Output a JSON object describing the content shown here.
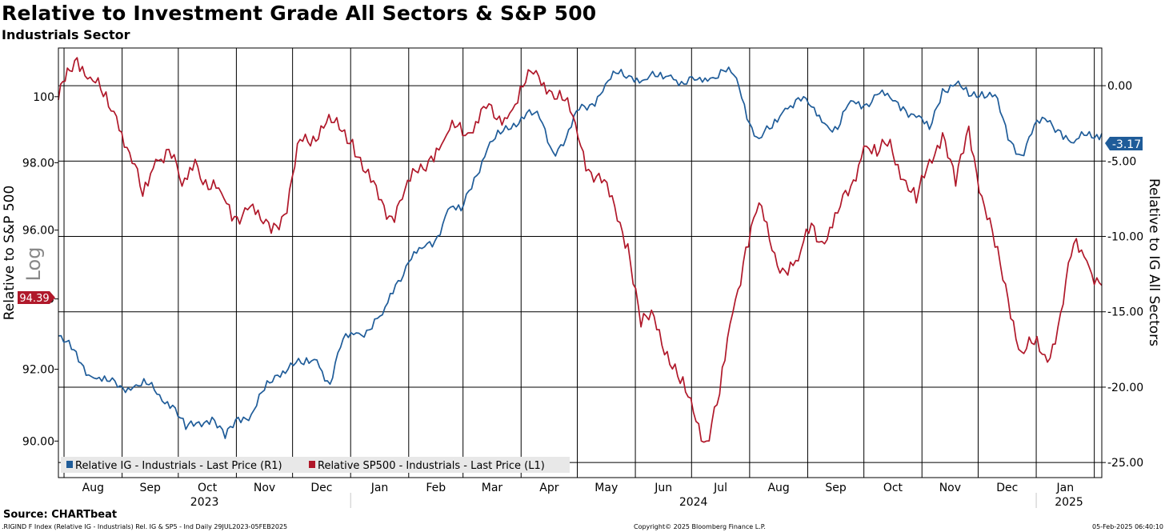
{
  "title": "Relative to Investment Grade All Sectors & S&P 500",
  "subtitle": "Industrials Sector",
  "source": "Source: CHARTbeat",
  "footer": {
    "left": ".RIGIND F Index (Relative IG - Industrials) Rel. IG & SP5 - Ind  Daily 29JUL2023-05FEB2025",
    "center": "Copyright© 2025 Bloomberg Finance L.P.",
    "right": "05-Feb-2025 06:40:10"
  },
  "chart_data": {
    "type": "line",
    "left_axis": {
      "label": "Relative to S&P 500",
      "scale_note": "Log",
      "ticks": [
        "90.00",
        "92.00",
        "94.00",
        "96.00",
        "98.00",
        "100"
      ],
      "range": [
        89.0,
        101.5
      ]
    },
    "right_axis": {
      "label": "Relative to IG All Sectors",
      "ticks": [
        "-25.00",
        "-20.00",
        "-15.00",
        "-10.00",
        "-5.00",
        "0.00"
      ],
      "range": [
        -26.0,
        2.5
      ]
    },
    "x_months": [
      "Aug",
      "Sep",
      "Oct",
      "Nov",
      "Dec",
      "Jan",
      "Feb",
      "Mar",
      "Apr",
      "May",
      "Jun",
      "Jul",
      "Aug",
      "Sep",
      "Oct",
      "Nov",
      "Dec",
      "Jan"
    ],
    "x_years": [
      "2023",
      "2024",
      "2025"
    ],
    "colors": {
      "ig": "#1f5c99",
      "sp500": "#b0182a"
    },
    "series": [
      {
        "name": "Relative IG - Industrials - Last Price (R1)",
        "axis": "right",
        "last_label": "-3.17",
        "points": [
          [
            "2023-07-29",
            -16.6
          ],
          [
            "2023-08-05",
            -17.5
          ],
          [
            "2023-08-10",
            -18.4
          ],
          [
            "2023-08-17",
            -19.4
          ],
          [
            "2023-08-24",
            -19.6
          ],
          [
            "2023-08-31",
            -19.9
          ],
          [
            "2023-09-07",
            -20.0
          ],
          [
            "2023-09-14",
            -19.8
          ],
          [
            "2023-09-21",
            -20.5
          ],
          [
            "2023-09-28",
            -21.2
          ],
          [
            "2023-10-05",
            -22.8
          ],
          [
            "2023-10-12",
            -22.3
          ],
          [
            "2023-10-19",
            -22.0
          ],
          [
            "2023-10-26",
            -23.4
          ],
          [
            "2023-11-02",
            -22.0
          ],
          [
            "2023-11-09",
            -21.8
          ],
          [
            "2023-11-16",
            -20.2
          ],
          [
            "2023-11-23",
            -19.2
          ],
          [
            "2023-11-30",
            -18.4
          ],
          [
            "2023-12-07",
            -18.5
          ],
          [
            "2023-12-14",
            -18.2
          ],
          [
            "2023-12-21",
            -19.8
          ],
          [
            "2023-12-28",
            -16.8
          ],
          [
            "2024-01-04",
            -16.4
          ],
          [
            "2024-01-11",
            -16.2
          ],
          [
            "2024-01-18",
            -15.2
          ],
          [
            "2024-01-25",
            -13.2
          ],
          [
            "2024-02-01",
            -11.7
          ],
          [
            "2024-02-08",
            -10.8
          ],
          [
            "2024-02-15",
            -10.3
          ],
          [
            "2024-02-22",
            -8.2
          ],
          [
            "2024-02-29",
            -8.3
          ],
          [
            "2024-03-07",
            -6.1
          ],
          [
            "2024-03-14",
            -4.2
          ],
          [
            "2024-03-21",
            -3.2
          ],
          [
            "2024-03-28",
            -2.5
          ],
          [
            "2024-04-04",
            -1.8
          ],
          [
            "2024-04-11",
            -2.2
          ],
          [
            "2024-04-18",
            -4.4
          ],
          [
            "2024-04-25",
            -3.5
          ],
          [
            "2024-05-02",
            -1.6
          ],
          [
            "2024-05-09",
            -1.2
          ],
          [
            "2024-05-16",
            0.1
          ],
          [
            "2024-05-23",
            0.8
          ],
          [
            "2024-05-30",
            0.6
          ],
          [
            "2024-06-06",
            0.4
          ],
          [
            "2024-06-13",
            0.6
          ],
          [
            "2024-06-20",
            0.7
          ],
          [
            "2024-06-27",
            0.1
          ],
          [
            "2024-07-04",
            0.4
          ],
          [
            "2024-07-11",
            0.5
          ],
          [
            "2024-07-18",
            1.0
          ],
          [
            "2024-07-25",
            0.5
          ],
          [
            "2024-08-01",
            -2.5
          ],
          [
            "2024-08-06",
            -3.5
          ],
          [
            "2024-08-13",
            -2.8
          ],
          [
            "2024-08-20",
            -1.5
          ],
          [
            "2024-08-27",
            -0.8
          ],
          [
            "2024-09-03",
            -1.4
          ],
          [
            "2024-09-10",
            -2.5
          ],
          [
            "2024-09-17",
            -2.9
          ],
          [
            "2024-09-24",
            -1.0
          ],
          [
            "2024-10-01",
            -1.3
          ],
          [
            "2024-10-08",
            -0.6
          ],
          [
            "2024-10-15",
            -0.8
          ],
          [
            "2024-10-22",
            -1.4
          ],
          [
            "2024-10-29",
            -2.1
          ],
          [
            "2024-11-05",
            -2.9
          ],
          [
            "2024-11-12",
            -0.2
          ],
          [
            "2024-11-19",
            0.1
          ],
          [
            "2024-11-26",
            -0.7
          ],
          [
            "2024-12-03",
            -0.4
          ],
          [
            "2024-12-10",
            -0.6
          ],
          [
            "2024-12-17",
            -3.6
          ],
          [
            "2024-12-24",
            -4.6
          ],
          [
            "2024-12-31",
            -2.6
          ],
          [
            "2025-01-07",
            -2.4
          ],
          [
            "2025-01-14",
            -3.0
          ],
          [
            "2025-01-21",
            -3.8
          ],
          [
            "2025-01-28",
            -3.3
          ],
          [
            "2025-02-05",
            -3.17
          ]
        ]
      },
      {
        "name": "Relative SP500 - Industrials - Last Price (L1)",
        "axis": "left",
        "last_label": "94.39",
        "points": [
          [
            "2023-07-29",
            99.9
          ],
          [
            "2023-08-04",
            100.8
          ],
          [
            "2023-08-08",
            101.2
          ],
          [
            "2023-08-15",
            100.6
          ],
          [
            "2023-08-22",
            100.0
          ],
          [
            "2023-08-29",
            99.4
          ],
          [
            "2023-09-05",
            98.3
          ],
          [
            "2023-09-12",
            97.0
          ],
          [
            "2023-09-19",
            98.1
          ],
          [
            "2023-09-26",
            98.4
          ],
          [
            "2023-10-03",
            97.3
          ],
          [
            "2023-10-10",
            98.1
          ],
          [
            "2023-10-17",
            97.2
          ],
          [
            "2023-10-24",
            97.1
          ],
          [
            "2023-10-31",
            96.4
          ],
          [
            "2023-11-07",
            96.6
          ],
          [
            "2023-11-14",
            96.3
          ],
          [
            "2023-11-21",
            96.2
          ],
          [
            "2023-11-28",
            96.5
          ],
          [
            "2023-12-05",
            98.7
          ],
          [
            "2023-12-12",
            98.8
          ],
          [
            "2023-12-19",
            99.2
          ],
          [
            "2023-12-26",
            99.0
          ],
          [
            "2024-01-02",
            98.7
          ],
          [
            "2024-01-09",
            97.7
          ],
          [
            "2024-01-16",
            96.9
          ],
          [
            "2024-01-23",
            96.4
          ],
          [
            "2024-01-30",
            97.2
          ],
          [
            "2024-02-06",
            97.7
          ],
          [
            "2024-02-13",
            98.2
          ],
          [
            "2024-02-20",
            98.7
          ],
          [
            "2024-02-27",
            99.1
          ],
          [
            "2024-03-05",
            98.9
          ],
          [
            "2024-03-12",
            99.7
          ],
          [
            "2024-03-19",
            99.3
          ],
          [
            "2024-03-26",
            99.5
          ],
          [
            "2024-04-02",
            100.3
          ],
          [
            "2024-04-09",
            100.8
          ],
          [
            "2024-04-16",
            100.2
          ],
          [
            "2024-04-23",
            99.9
          ],
          [
            "2024-04-30",
            99.2
          ],
          [
            "2024-05-07",
            97.8
          ],
          [
            "2024-05-14",
            97.4
          ],
          [
            "2024-05-21",
            96.7
          ],
          [
            "2024-05-28",
            95.6
          ],
          [
            "2024-06-04",
            93.2
          ],
          [
            "2024-06-11",
            93.5
          ],
          [
            "2024-06-18",
            92.5
          ],
          [
            "2024-06-25",
            91.6
          ],
          [
            "2024-07-02",
            90.8
          ],
          [
            "2024-07-09",
            90.0
          ],
          [
            "2024-07-16",
            91.3
          ],
          [
            "2024-07-23",
            93.6
          ],
          [
            "2024-07-30",
            95.5
          ],
          [
            "2024-08-06",
            96.8
          ],
          [
            "2024-08-13",
            95.4
          ],
          [
            "2024-08-20",
            94.8
          ],
          [
            "2024-08-27",
            95.1
          ],
          [
            "2024-09-03",
            96.2
          ],
          [
            "2024-09-10",
            95.6
          ],
          [
            "2024-09-17",
            96.5
          ],
          [
            "2024-09-24",
            97.3
          ],
          [
            "2024-10-01",
            98.5
          ],
          [
            "2024-10-08",
            98.2
          ],
          [
            "2024-10-15",
            98.7
          ],
          [
            "2024-10-22",
            97.5
          ],
          [
            "2024-10-29",
            96.8
          ],
          [
            "2024-11-05",
            98.1
          ],
          [
            "2024-11-12",
            98.9
          ],
          [
            "2024-11-19",
            97.3
          ],
          [
            "2024-11-26",
            99.1
          ],
          [
            "2024-12-03",
            97.0
          ],
          [
            "2024-12-10",
            95.5
          ],
          [
            "2024-12-17",
            94.0
          ],
          [
            "2024-12-24",
            92.5
          ],
          [
            "2024-12-31",
            92.7
          ],
          [
            "2025-01-07",
            92.2
          ],
          [
            "2025-01-14",
            93.6
          ],
          [
            "2025-01-21",
            95.6
          ],
          [
            "2025-01-28",
            95.1
          ],
          [
            "2025-02-05",
            94.39
          ]
        ]
      }
    ]
  }
}
